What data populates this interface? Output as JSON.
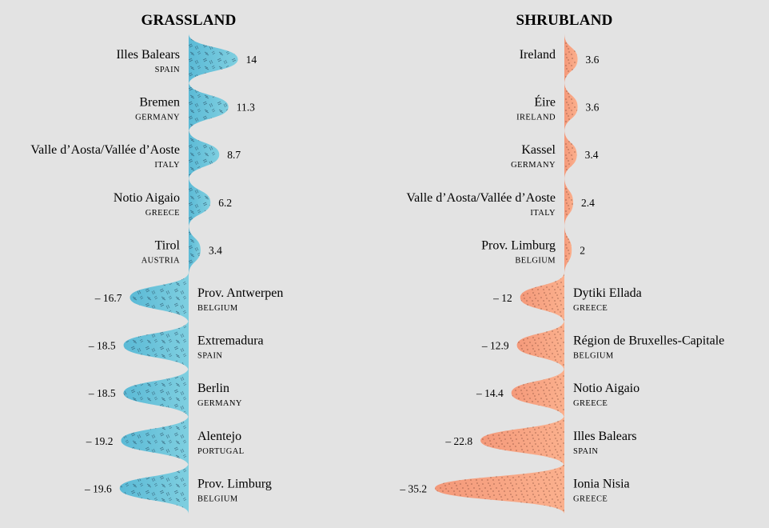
{
  "chart_data": [
    {
      "type": "area",
      "title": "GRASSLAND",
      "colors": {
        "fill": "#7fcfe0",
        "fill_dark": "#5bbad6",
        "texture": "#2a4f66"
      },
      "texture": "hatch",
      "items": [
        {
          "region": "Illes Balears",
          "country": "SPAIN",
          "value": 14,
          "label": "14"
        },
        {
          "region": "Bremen",
          "country": "GERMANY",
          "value": 11.3,
          "label": "11.3"
        },
        {
          "region": "Valle d’Aosta/Vallée d’Aoste",
          "country": "ITALY",
          "value": 8.7,
          "label": "8.7"
        },
        {
          "region": "Notio Aigaio",
          "country": "GREECE",
          "value": 6.2,
          "label": "6.2"
        },
        {
          "region": "Tirol",
          "country": "AUSTRIA",
          "value": 3.4,
          "label": "3.4"
        },
        {
          "region": "Prov. Antwerpen",
          "country": "BELGIUM",
          "value": -16.7,
          "label": "– 16.7"
        },
        {
          "region": "Extremadura",
          "country": "SPAIN",
          "value": -18.5,
          "label": "– 18.5"
        },
        {
          "region": "Berlin",
          "country": "GERMANY",
          "value": -18.5,
          "label": "– 18.5"
        },
        {
          "region": "Alentejo",
          "country": "PORTUGAL",
          "value": -19.2,
          "label": "– 19.2"
        },
        {
          "region": "Prov. Limburg",
          "country": "BELGIUM",
          "value": -19.6,
          "label": "– 19.6"
        }
      ]
    },
    {
      "type": "area",
      "title": "SHRUBLAND",
      "colors": {
        "fill": "#fbb08d",
        "fill_dark": "#f4997a",
        "texture": "#5a2a1a"
      },
      "texture": "dots",
      "items": [
        {
          "region": "Ireland",
          "country": "",
          "value": 3.6,
          "label": "3.6"
        },
        {
          "region": "Éire",
          "country": "IRELAND",
          "value": 3.6,
          "label": "3.6"
        },
        {
          "region": "Kassel",
          "country": "GERMANY",
          "value": 3.4,
          "label": "3.4"
        },
        {
          "region": "Valle d’Aosta/Vallée d’Aoste",
          "country": "ITALY",
          "value": 2.4,
          "label": "2.4"
        },
        {
          "region": "Prov. Limburg",
          "country": "BELGIUM",
          "value": 2,
          "label": "2"
        },
        {
          "region": "Dytiki Ellada",
          "country": "GREECE",
          "value": -12,
          "label": "– 12"
        },
        {
          "region": "Région de Bruxelles-Capitale",
          "country": "BELGIUM",
          "value": -12.9,
          "label": "– 12.9"
        },
        {
          "region": "Notio Aigaio",
          "country": "GREECE",
          "value": -14.4,
          "label": "– 14.4"
        },
        {
          "region": "Illes Balears",
          "country": "SPAIN",
          "value": -22.8,
          "label": "– 22.8"
        },
        {
          "region": "Ionia Nisia",
          "country": "GREECE",
          "value": -35.2,
          "label": "– 35.2"
        }
      ]
    }
  ]
}
